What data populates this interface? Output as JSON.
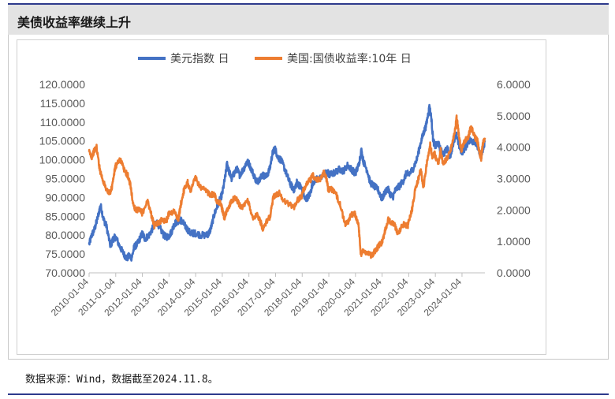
{
  "header": {
    "title": "美债收益率继续上升"
  },
  "footer": {
    "source": "数据来源：Wind，数据截至2024.11.8。"
  },
  "colors": {
    "usd_index": "#4472c4",
    "treasury_10y": "#ed7d31",
    "accent": "#2d3a8c"
  },
  "chart_data": {
    "type": "line",
    "title": "",
    "legend": {
      "placement": "top",
      "entries": [
        "美元指数 日",
        "美国:国债收益率:10年 日"
      ]
    },
    "y_left": {
      "min": 70,
      "max": 120,
      "step": 5,
      "tick_labels": [
        "70.0000",
        "75.0000",
        "80.0000",
        "85.0000",
        "90.0000",
        "95.0000",
        "100.0000",
        "105.0000",
        "110.0000",
        "115.0000",
        "120.0000"
      ]
    },
    "y_right": {
      "min": 0,
      "max": 6,
      "step": 1,
      "tick_labels": [
        "0.0000",
        "1.0000",
        "2.0000",
        "3.0000",
        "4.0000",
        "5.0000",
        "6.0000"
      ]
    },
    "x_range": [
      2010.0,
      2024.86
    ],
    "x_tick_values": [
      2010.0,
      2011.0,
      2012.0,
      2013.0,
      2014.0,
      2015.0,
      2016.0,
      2017.0,
      2018.0,
      2019.0,
      2020.0,
      2021.0,
      2022.0,
      2023.0,
      2024.0
    ],
    "x_tick_labels": [
      "2010-01-04",
      "2011-01-04",
      "2012-01-04",
      "2013-01-04",
      "2014-01-04",
      "2015-01-04",
      "2016-01-04",
      "2017-01-04",
      "2018-01-04",
      "2019-01-04",
      "2020-01-04",
      "2021-01-04",
      "2022-01-04",
      "2023-01-04",
      "2024-01-04"
    ],
    "grid": false,
    "series": [
      {
        "name": "美元指数 日",
        "axis": "left",
        "points": [
          [
            2010.0,
            77.5
          ],
          [
            2010.1,
            80.0
          ],
          [
            2010.2,
            81.5
          ],
          [
            2010.3,
            84.0
          ],
          [
            2010.43,
            88.0
          ],
          [
            2010.55,
            84.0
          ],
          [
            2010.65,
            82.5
          ],
          [
            2010.8,
            77.0
          ],
          [
            2010.9,
            79.0
          ],
          [
            2011.0,
            79.5
          ],
          [
            2011.15,
            77.0
          ],
          [
            2011.3,
            75.0
          ],
          [
            2011.42,
            73.8
          ],
          [
            2011.5,
            74.5
          ],
          [
            2011.6,
            74.0
          ],
          [
            2011.7,
            77.0
          ],
          [
            2011.8,
            77.5
          ],
          [
            2011.9,
            79.0
          ],
          [
            2012.0,
            80.5
          ],
          [
            2012.1,
            79.0
          ],
          [
            2012.25,
            80.0
          ],
          [
            2012.4,
            82.0
          ],
          [
            2012.55,
            83.5
          ],
          [
            2012.65,
            82.0
          ],
          [
            2012.8,
            80.0
          ],
          [
            2012.9,
            79.5
          ],
          [
            2013.0,
            79.8
          ],
          [
            2013.1,
            81.0
          ],
          [
            2013.2,
            83.0
          ],
          [
            2013.3,
            83.5
          ],
          [
            2013.45,
            84.0
          ],
          [
            2013.55,
            83.0
          ],
          [
            2013.65,
            82.0
          ],
          [
            2013.8,
            80.5
          ],
          [
            2013.9,
            80.5
          ],
          [
            2014.0,
            80.5
          ],
          [
            2014.2,
            80.0
          ],
          [
            2014.4,
            80.0
          ],
          [
            2014.5,
            80.5
          ],
          [
            2014.58,
            82.0
          ],
          [
            2014.7,
            85.5
          ],
          [
            2014.8,
            87.5
          ],
          [
            2014.92,
            89.5
          ],
          [
            2015.0,
            91.0
          ],
          [
            2015.1,
            95.0
          ],
          [
            2015.18,
            99.0
          ],
          [
            2015.25,
            97.0
          ],
          [
            2015.35,
            95.0
          ],
          [
            2015.45,
            96.5
          ],
          [
            2015.55,
            97.5
          ],
          [
            2015.65,
            96.0
          ],
          [
            2015.8,
            97.5
          ],
          [
            2015.92,
            99.5
          ],
          [
            2016.0,
            99.0
          ],
          [
            2016.15,
            96.5
          ],
          [
            2016.3,
            94.0
          ],
          [
            2016.4,
            95.0
          ],
          [
            2016.5,
            96.0
          ],
          [
            2016.65,
            95.5
          ],
          [
            2016.78,
            97.5
          ],
          [
            2016.88,
            101.5
          ],
          [
            2016.97,
            103.0
          ],
          [
            2017.0,
            102.5
          ],
          [
            2017.1,
            100.5
          ],
          [
            2017.2,
            100.0
          ],
          [
            2017.35,
            97.5
          ],
          [
            2017.5,
            94.5
          ],
          [
            2017.6,
            93.0
          ],
          [
            2017.7,
            92.0
          ],
          [
            2017.8,
            94.0
          ],
          [
            2017.92,
            93.0
          ],
          [
            2018.0,
            92.0
          ],
          [
            2018.1,
            89.5
          ],
          [
            2018.2,
            90.0
          ],
          [
            2018.3,
            91.0
          ],
          [
            2018.4,
            94.0
          ],
          [
            2018.55,
            95.0
          ],
          [
            2018.7,
            95.0
          ],
          [
            2018.85,
            96.5
          ],
          [
            2018.97,
            96.5
          ],
          [
            2019.0,
            96.0
          ],
          [
            2019.2,
            96.5
          ],
          [
            2019.4,
            97.5
          ],
          [
            2019.55,
            97.0
          ],
          [
            2019.7,
            98.5
          ],
          [
            2019.85,
            97.5
          ],
          [
            2019.97,
            96.5
          ],
          [
            2020.0,
            96.5
          ],
          [
            2020.12,
            98.5
          ],
          [
            2020.22,
            102.5
          ],
          [
            2020.3,
            99.5
          ],
          [
            2020.45,
            97.0
          ],
          [
            2020.55,
            94.0
          ],
          [
            2020.7,
            93.0
          ],
          [
            2020.85,
            92.0
          ],
          [
            2020.97,
            90.0
          ],
          [
            2021.0,
            89.8
          ],
          [
            2021.2,
            92.5
          ],
          [
            2021.3,
            91.0
          ],
          [
            2021.4,
            90.0
          ],
          [
            2021.5,
            92.0
          ],
          [
            2021.65,
            93.0
          ],
          [
            2021.8,
            94.5
          ],
          [
            2021.92,
            96.5
          ],
          [
            2022.0,
            96.0
          ],
          [
            2022.15,
            97.5
          ],
          [
            2022.3,
            100.0
          ],
          [
            2022.45,
            104.5
          ],
          [
            2022.55,
            107.0
          ],
          [
            2022.65,
            109.0
          ],
          [
            2022.75,
            113.0
          ],
          [
            2022.78,
            114.0
          ],
          [
            2022.85,
            111.0
          ],
          [
            2022.92,
            105.0
          ],
          [
            2023.0,
            103.5
          ],
          [
            2023.1,
            104.5
          ],
          [
            2023.2,
            102.5
          ],
          [
            2023.3,
            101.5
          ],
          [
            2023.45,
            103.0
          ],
          [
            2023.55,
            101.0
          ],
          [
            2023.7,
            105.0
          ],
          [
            2023.8,
            106.5
          ],
          [
            2023.9,
            103.5
          ],
          [
            2024.0,
            102.0
          ],
          [
            2024.15,
            103.5
          ],
          [
            2024.3,
            105.5
          ],
          [
            2024.45,
            104.5
          ],
          [
            2024.55,
            104.5
          ],
          [
            2024.65,
            102.0
          ],
          [
            2024.72,
            100.8
          ],
          [
            2024.8,
            103.0
          ],
          [
            2024.86,
            105.0
          ]
        ]
      },
      {
        "name": "美国:国债收益率:10年 日",
        "axis": "right",
        "points": [
          [
            2010.0,
            3.85
          ],
          [
            2010.1,
            3.7
          ],
          [
            2010.2,
            3.9
          ],
          [
            2010.28,
            4.0
          ],
          [
            2010.4,
            3.3
          ],
          [
            2010.5,
            3.0
          ],
          [
            2010.6,
            2.75
          ],
          [
            2010.75,
            2.5
          ],
          [
            2010.85,
            2.7
          ],
          [
            2010.97,
            3.3
          ],
          [
            2011.0,
            3.4
          ],
          [
            2011.1,
            3.55
          ],
          [
            2011.2,
            3.6
          ],
          [
            2011.3,
            3.3
          ],
          [
            2011.45,
            3.1
          ],
          [
            2011.55,
            2.8
          ],
          [
            2011.65,
            2.2
          ],
          [
            2011.75,
            2.0
          ],
          [
            2011.85,
            2.0
          ],
          [
            2011.95,
            1.95
          ],
          [
            2012.0,
            1.9
          ],
          [
            2012.2,
            2.3
          ],
          [
            2012.35,
            1.8
          ],
          [
            2012.45,
            1.5
          ],
          [
            2012.6,
            1.6
          ],
          [
            2012.75,
            1.7
          ],
          [
            2012.9,
            1.65
          ],
          [
            2013.0,
            1.9
          ],
          [
            2013.2,
            1.95
          ],
          [
            2013.35,
            1.7
          ],
          [
            2013.45,
            2.2
          ],
          [
            2013.55,
            2.6
          ],
          [
            2013.7,
            2.9
          ],
          [
            2013.8,
            2.6
          ],
          [
            2013.97,
            3.0
          ],
          [
            2014.0,
            3.0
          ],
          [
            2014.2,
            2.7
          ],
          [
            2014.4,
            2.6
          ],
          [
            2014.55,
            2.5
          ],
          [
            2014.7,
            2.5
          ],
          [
            2014.8,
            2.3
          ],
          [
            2014.95,
            2.2
          ],
          [
            2015.0,
            2.0
          ],
          [
            2015.08,
            1.75
          ],
          [
            2015.2,
            2.0
          ],
          [
            2015.35,
            2.3
          ],
          [
            2015.5,
            2.4
          ],
          [
            2015.65,
            2.15
          ],
          [
            2015.8,
            2.1
          ],
          [
            2015.95,
            2.3
          ],
          [
            2016.0,
            2.2
          ],
          [
            2016.15,
            1.75
          ],
          [
            2016.3,
            1.85
          ],
          [
            2016.45,
            1.6
          ],
          [
            2016.52,
            1.4
          ],
          [
            2016.65,
            1.6
          ],
          [
            2016.8,
            1.8
          ],
          [
            2016.92,
            2.45
          ],
          [
            2017.0,
            2.45
          ],
          [
            2017.15,
            2.55
          ],
          [
            2017.3,
            2.3
          ],
          [
            2017.5,
            2.2
          ],
          [
            2017.7,
            2.1
          ],
          [
            2017.85,
            2.35
          ],
          [
            2017.97,
            2.4
          ],
          [
            2018.0,
            2.5
          ],
          [
            2018.15,
            2.85
          ],
          [
            2018.3,
            2.95
          ],
          [
            2018.4,
            3.1
          ],
          [
            2018.55,
            2.95
          ],
          [
            2018.7,
            3.0
          ],
          [
            2018.8,
            3.2
          ],
          [
            2018.9,
            3.05
          ],
          [
            2018.97,
            2.7
          ],
          [
            2019.0,
            2.65
          ],
          [
            2019.15,
            2.65
          ],
          [
            2019.3,
            2.45
          ],
          [
            2019.45,
            2.1
          ],
          [
            2019.6,
            1.55
          ],
          [
            2019.7,
            1.6
          ],
          [
            2019.85,
            1.85
          ],
          [
            2019.97,
            1.9
          ],
          [
            2020.0,
            1.85
          ],
          [
            2020.12,
            1.5
          ],
          [
            2020.2,
            0.6
          ],
          [
            2020.3,
            0.7
          ],
          [
            2020.45,
            0.65
          ],
          [
            2020.6,
            0.55
          ],
          [
            2020.75,
            0.7
          ],
          [
            2020.9,
            0.9
          ],
          [
            2020.97,
            0.92
          ],
          [
            2021.0,
            1.0
          ],
          [
            2021.1,
            1.3
          ],
          [
            2021.22,
            1.7
          ],
          [
            2021.3,
            1.65
          ],
          [
            2021.45,
            1.55
          ],
          [
            2021.6,
            1.25
          ],
          [
            2021.75,
            1.5
          ],
          [
            2021.85,
            1.55
          ],
          [
            2021.97,
            1.5
          ],
          [
            2022.0,
            1.65
          ],
          [
            2022.12,
            2.0
          ],
          [
            2022.25,
            2.7
          ],
          [
            2022.35,
            2.95
          ],
          [
            2022.45,
            3.3
          ],
          [
            2022.55,
            2.7
          ],
          [
            2022.68,
            3.5
          ],
          [
            2022.8,
            4.1
          ],
          [
            2022.88,
            3.7
          ],
          [
            2022.97,
            3.8
          ],
          [
            2023.0,
            3.7
          ],
          [
            2023.12,
            3.5
          ],
          [
            2023.2,
            3.9
          ],
          [
            2023.28,
            3.45
          ],
          [
            2023.4,
            3.6
          ],
          [
            2023.55,
            3.85
          ],
          [
            2023.65,
            4.2
          ],
          [
            2023.75,
            4.6
          ],
          [
            2023.8,
            4.95
          ],
          [
            2023.88,
            4.4
          ],
          [
            2023.97,
            3.9
          ],
          [
            2024.0,
            3.95
          ],
          [
            2024.1,
            4.2
          ],
          [
            2024.22,
            4.3
          ],
          [
            2024.32,
            4.6
          ],
          [
            2024.4,
            4.55
          ],
          [
            2024.5,
            4.3
          ],
          [
            2024.58,
            4.2
          ],
          [
            2024.65,
            3.85
          ],
          [
            2024.72,
            3.65
          ],
          [
            2024.78,
            4.1
          ],
          [
            2024.86,
            4.3
          ]
        ]
      }
    ]
  }
}
